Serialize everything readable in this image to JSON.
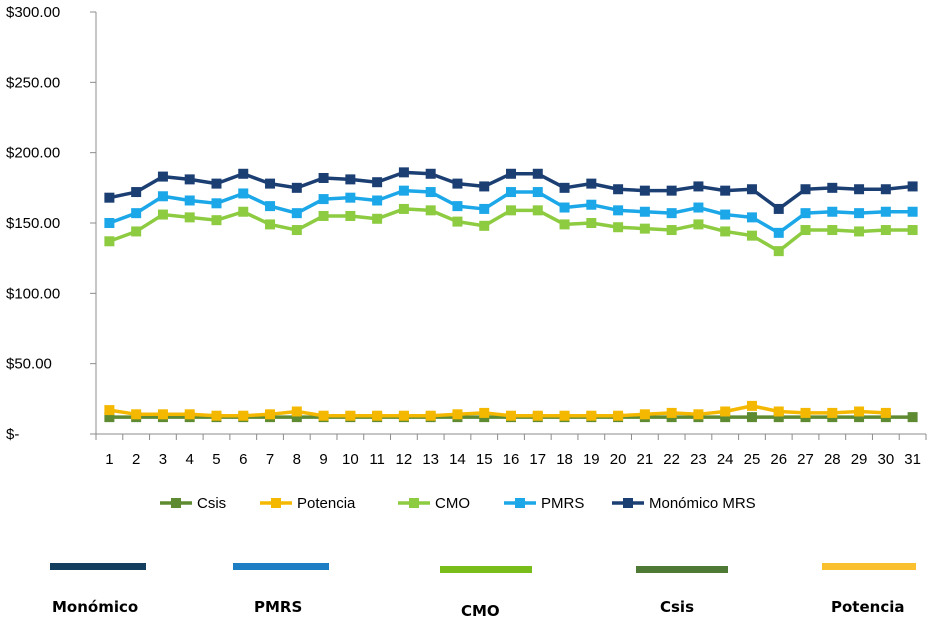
{
  "chart_data": {
    "type": "line",
    "title": "",
    "xlabel": "",
    "ylabel": "",
    "ylim": [
      0,
      300
    ],
    "y_ticks": [
      0,
      50,
      100,
      150,
      200,
      250,
      300
    ],
    "y_tick_labels": [
      "$-",
      "$50.00",
      "$100.00",
      "$150.00",
      "$200.00",
      "$250.00",
      "$300.00"
    ],
    "categories": [
      "1",
      "2",
      "3",
      "4",
      "5",
      "6",
      "7",
      "8",
      "9",
      "10",
      "11",
      "12",
      "13",
      "14",
      "15",
      "16",
      "17",
      "18",
      "19",
      "20",
      "21",
      "22",
      "23",
      "24",
      "25",
      "26",
      "27",
      "28",
      "29",
      "30",
      "31"
    ],
    "series": [
      {
        "name": "Csis",
        "color": "#5E8A32",
        "values": [
          12,
          12,
          12,
          12,
          12,
          12,
          12,
          12,
          12,
          12,
          12,
          12,
          12,
          12,
          12,
          12,
          12,
          12,
          12,
          12,
          12,
          12,
          12,
          12,
          12,
          12,
          12,
          12,
          12,
          12,
          12
        ]
      },
      {
        "name": "Potencia",
        "color": "#F5B800",
        "values": [
          17,
          14,
          14,
          14,
          13,
          13,
          14,
          16,
          13,
          13,
          13,
          13,
          13,
          14,
          15,
          13,
          13,
          13,
          13,
          13,
          14,
          15,
          14,
          16,
          20,
          16,
          15,
          15,
          16,
          15,
          null
        ]
      },
      {
        "name": "CMO",
        "color": "#8DCB41",
        "values": [
          137,
          144,
          156,
          154,
          152,
          158,
          149,
          145,
          155,
          155,
          153,
          160,
          159,
          151,
          148,
          159,
          159,
          149,
          150,
          147,
          146,
          145,
          149,
          144,
          141,
          130,
          145,
          145,
          144,
          145,
          145
        ]
      },
      {
        "name": "PMRS",
        "color": "#1BA7E8",
        "values": [
          150,
          157,
          169,
          166,
          164,
          171,
          162,
          157,
          167,
          168,
          166,
          173,
          172,
          162,
          160,
          172,
          172,
          161,
          163,
          159,
          158,
          157,
          161,
          156,
          154,
          143,
          157,
          158,
          157,
          158,
          158
        ]
      },
      {
        "name": "Monómico MRS",
        "color": "#1C3F73",
        "values": [
          168,
          172,
          183,
          181,
          178,
          185,
          178,
          175,
          182,
          181,
          179,
          186,
          185,
          178,
          176,
          185,
          185,
          175,
          178,
          174,
          173,
          173,
          176,
          173,
          174,
          160,
          174,
          175,
          174,
          174,
          176
        ]
      }
    ],
    "legend_position": "bottom"
  },
  "color_key": [
    {
      "label": "Monómico",
      "color": "#143E5E"
    },
    {
      "label": "PMRS",
      "color": "#1D7EC4"
    },
    {
      "label": "CMO",
      "color": "#79BD1A"
    },
    {
      "label": "Csis",
      "color": "#4F7A35"
    },
    {
      "label": "Potencia",
      "color": "#FBC02D"
    }
  ]
}
